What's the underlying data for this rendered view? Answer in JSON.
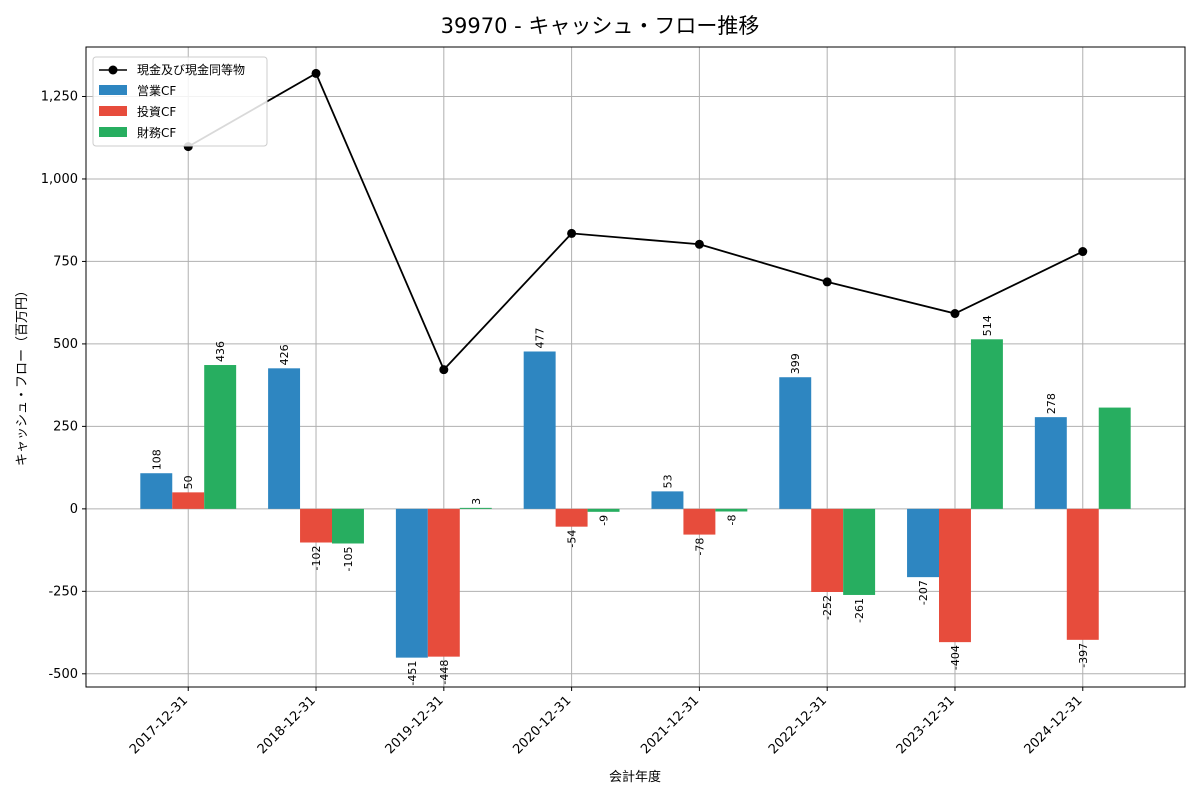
{
  "chart_data": {
    "type": "bar",
    "title": "39970 - キャッシュ・フロー推移",
    "xlabel": "会計年度",
    "ylabel": "キャッシュ・フロー（百万円）",
    "categories": [
      "2017-12-31",
      "2018-12-31",
      "2019-12-31",
      "2020-12-31",
      "2021-12-31",
      "2022-12-31",
      "2023-12-31",
      "2024-12-31"
    ],
    "ylim": [
      -540,
      1400
    ],
    "yticks": [
      -500,
      -250,
      0,
      250,
      500,
      750,
      1000,
      1250
    ],
    "ytick_labels": [
      "-500",
      "-250",
      "0",
      "250",
      "500",
      "750",
      "1,000",
      "1,250"
    ],
    "grid": true,
    "legend_position": "top-left",
    "series": [
      {
        "name": "営業CF",
        "kind": "bar",
        "color": "#2e86c1",
        "values": [
          108,
          426,
          -451,
          477,
          53,
          399,
          -207,
          278
        ],
        "labels": [
          "108",
          "426",
          "-451",
          "477",
          "53",
          "399",
          "-207",
          "278"
        ]
      },
      {
        "name": "投資CF",
        "kind": "bar",
        "color": "#e74c3c",
        "values": [
          50,
          -102,
          -448,
          -54,
          -78,
          -252,
          -404,
          -397
        ],
        "labels": [
          "50",
          "-102",
          "-448",
          "-54",
          "-78",
          "-252",
          "-404",
          "-397"
        ]
      },
      {
        "name": "財務CF",
        "kind": "bar",
        "color": "#27ae60",
        "values": [
          436,
          -105,
          3,
          -9,
          -8,
          -261,
          514,
          307
        ],
        "labels": [
          "436",
          "-105",
          "3",
          "-9",
          "-8",
          "-261",
          "514",
          ""
        ]
      },
      {
        "name": "現金及び現金同等物",
        "kind": "line",
        "color": "#000000",
        "values": [
          1098,
          1320,
          422,
          835,
          802,
          688,
          592,
          780
        ]
      }
    ]
  }
}
